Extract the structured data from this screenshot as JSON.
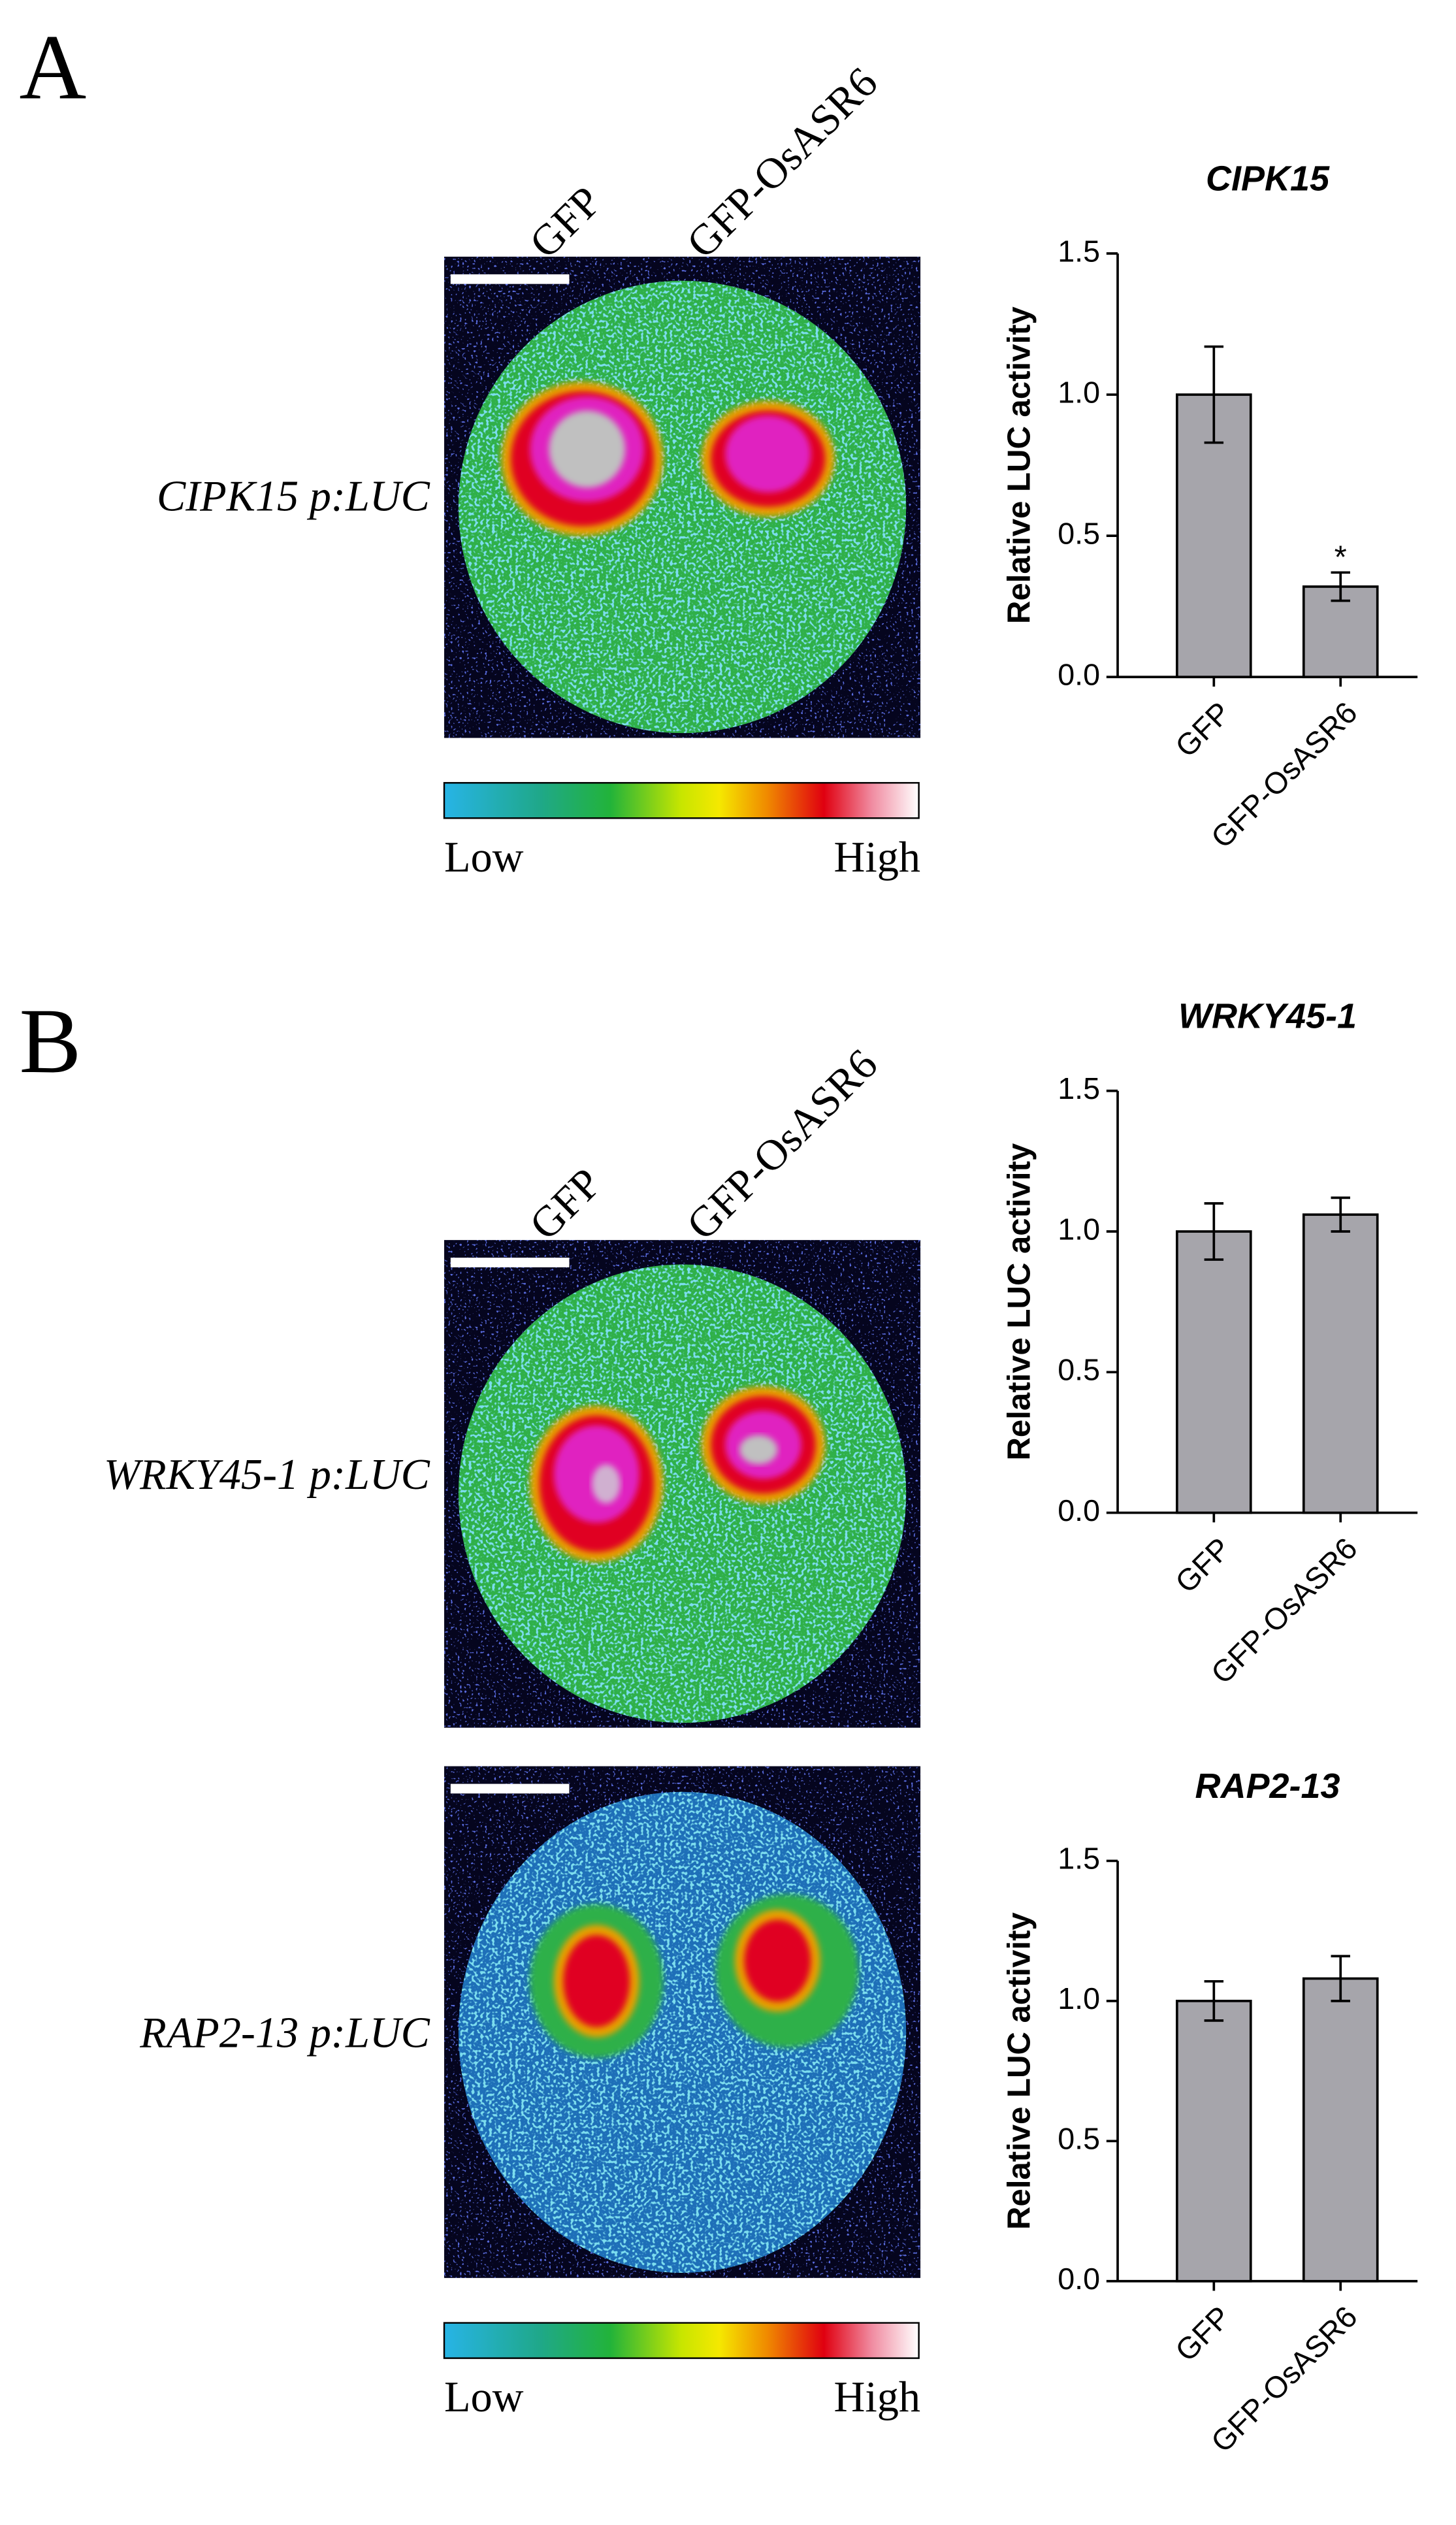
{
  "panels": [
    {
      "label": "A",
      "columns": [
        "GFP",
        "GFP-OsASR6"
      ],
      "rows": [
        "CIPK15 p:LUC"
      ],
      "colorbar": {
        "low": "Low",
        "high": "High"
      }
    },
    {
      "label": "B",
      "columns": [
        "GFP",
        "GFP-OsASR6"
      ],
      "rows": [
        "WRKY45-1 p:LUC",
        "RAP2-13 p:LUC"
      ],
      "colorbar": {
        "low": "Low",
        "high": "High"
      }
    }
  ],
  "chart_data": [
    {
      "type": "bar",
      "title": "CIPK15",
      "y_label": "Relative LUC activity",
      "categories": [
        "GFP",
        "GFP-OsASR6"
      ],
      "values": [
        1.0,
        0.32
      ],
      "errors": [
        0.17,
        0.05
      ],
      "value_annotations": [
        null,
        "*"
      ],
      "color": "#a6a5ab",
      "ylim": [
        0,
        1.5
      ],
      "yticks": [
        {
          "value": 0,
          "label": "0.0"
        },
        {
          "value": 0.5,
          "label": "0.5"
        },
        {
          "value": 1,
          "label": "1.0"
        },
        {
          "value": 1.5,
          "label": "1.5"
        }
      ]
    },
    {
      "type": "bar",
      "title": "WRKY45-1",
      "y_label": "Relative LUC activity",
      "categories": [
        "GFP",
        "GFP-OsASR6"
      ],
      "values": [
        1.0,
        1.06
      ],
      "errors": [
        0.1,
        0.06
      ],
      "color": "#a6a5ab",
      "ylim": [
        0,
        1.5
      ],
      "yticks": [
        {
          "value": 0,
          "label": "0.0"
        },
        {
          "value": 0.5,
          "label": "0.5"
        },
        {
          "value": 1,
          "label": "1.0"
        },
        {
          "value": 1.5,
          "label": "1.5"
        }
      ]
    },
    {
      "type": "bar",
      "title": "RAP2-13",
      "y_label": "Relative LUC activity",
      "categories": [
        "GFP",
        "GFP-OsASR6"
      ],
      "values": [
        1.0,
        1.08
      ],
      "errors": [
        0.07,
        0.08
      ],
      "color": "#a6a5ab",
      "ylim": [
        0,
        1.5
      ],
      "yticks": [
        {
          "value": 0,
          "label": "0.0"
        },
        {
          "value": 0.5,
          "label": "0.5"
        },
        {
          "value": 1,
          "label": "1.0"
        },
        {
          "value": 1.5,
          "label": "1.5"
        }
      ]
    }
  ]
}
